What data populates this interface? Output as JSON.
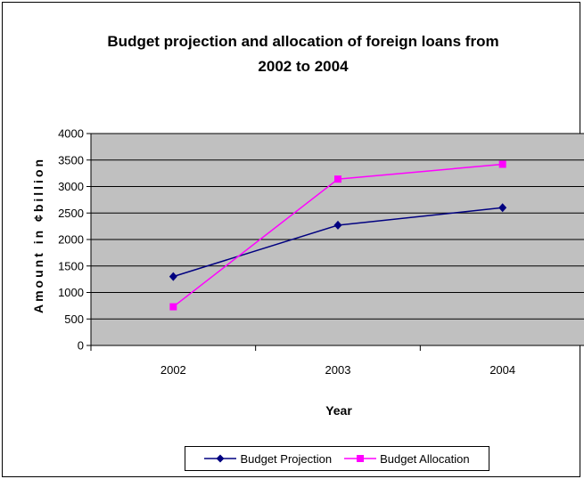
{
  "chart_data": {
    "type": "line",
    "title_lines": [
      "Budget projection and allocation of foreign loans from",
      "2002 to 2004"
    ],
    "xlabel": "Year",
    "ylabel": "Amount in ¢billion",
    "categories": [
      "2002",
      "2003",
      "2004"
    ],
    "ylim": [
      0,
      4000
    ],
    "yticks": [
      "0",
      "500",
      "1000",
      "1500",
      "2000",
      "2500",
      "3000",
      "3500",
      "4000"
    ],
    "grid": true,
    "legend_position": "bottom",
    "plot_background": "#c0c0c0",
    "series": [
      {
        "name": "Budget Projection",
        "values": [
          1300,
          2270,
          2600
        ],
        "color": "#000080",
        "marker": "diamond"
      },
      {
        "name": "Budget Allocation",
        "values": [
          730,
          3140,
          3420
        ],
        "color": "#ff00ff",
        "marker": "square"
      }
    ]
  }
}
